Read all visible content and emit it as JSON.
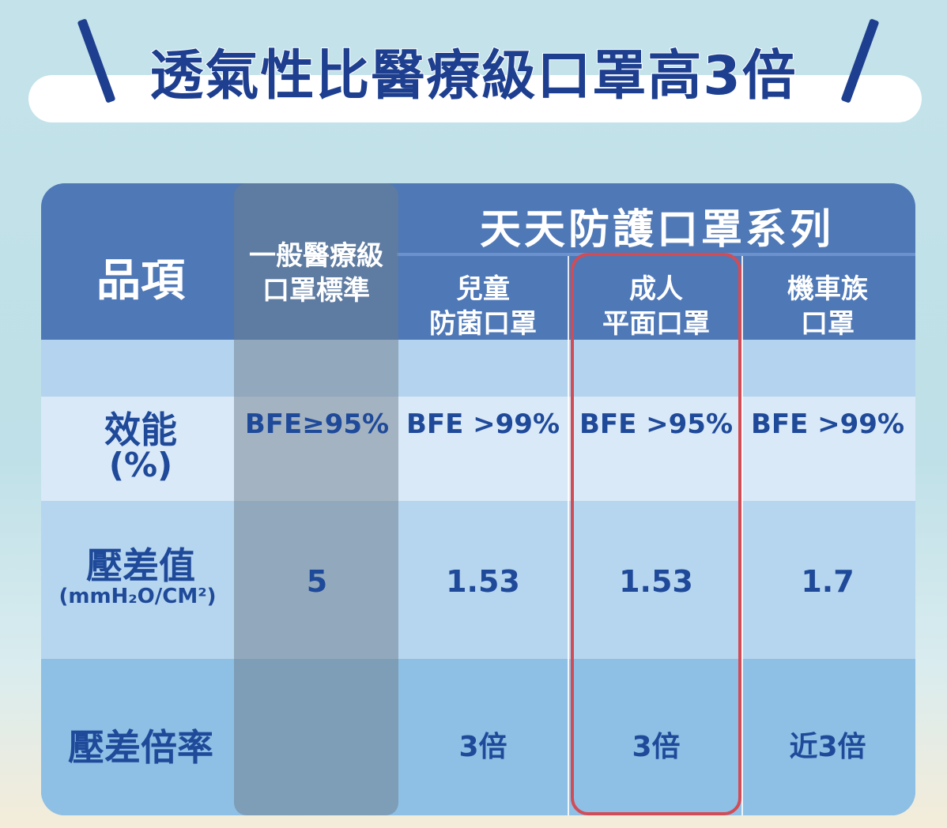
{
  "title": "透氣性比醫療級口罩高3倍",
  "header": {
    "item_label": "品項",
    "medical_label_line1": "一般醫療級",
    "medical_label_line2": "口罩標準",
    "series_title": "天天防護口罩系列",
    "col_kids_line1": "兒童",
    "col_kids_line2": "防菌口罩",
    "col_adult_line1": "成人",
    "col_adult_line2": "平面口罩",
    "col_moto_line1": "機車族",
    "col_moto_line2": "口罩"
  },
  "rows": {
    "efficiency": {
      "label_line1": "效能",
      "label_line2": "(%)",
      "medical": "BFE≥95%",
      "kids": "BFE >99%",
      "adult": "BFE >95%",
      "moto": "BFE >99%"
    },
    "pressure": {
      "label_line1": "壓差值",
      "label_line2": "(mmH₂O/CM²)",
      "medical": "5",
      "kids": "1.53",
      "adult": "1.53",
      "moto": "1.7"
    },
    "ratio": {
      "label": "壓差倍率",
      "medical": "",
      "kids": "3倍",
      "adult": "3倍",
      "moto": "近3倍"
    }
  },
  "colors": {
    "title": "#1e3f8f",
    "header_bg": "#4f78b7",
    "highlight_border": "#d24c56",
    "text_blue": "#1f4a9a"
  }
}
